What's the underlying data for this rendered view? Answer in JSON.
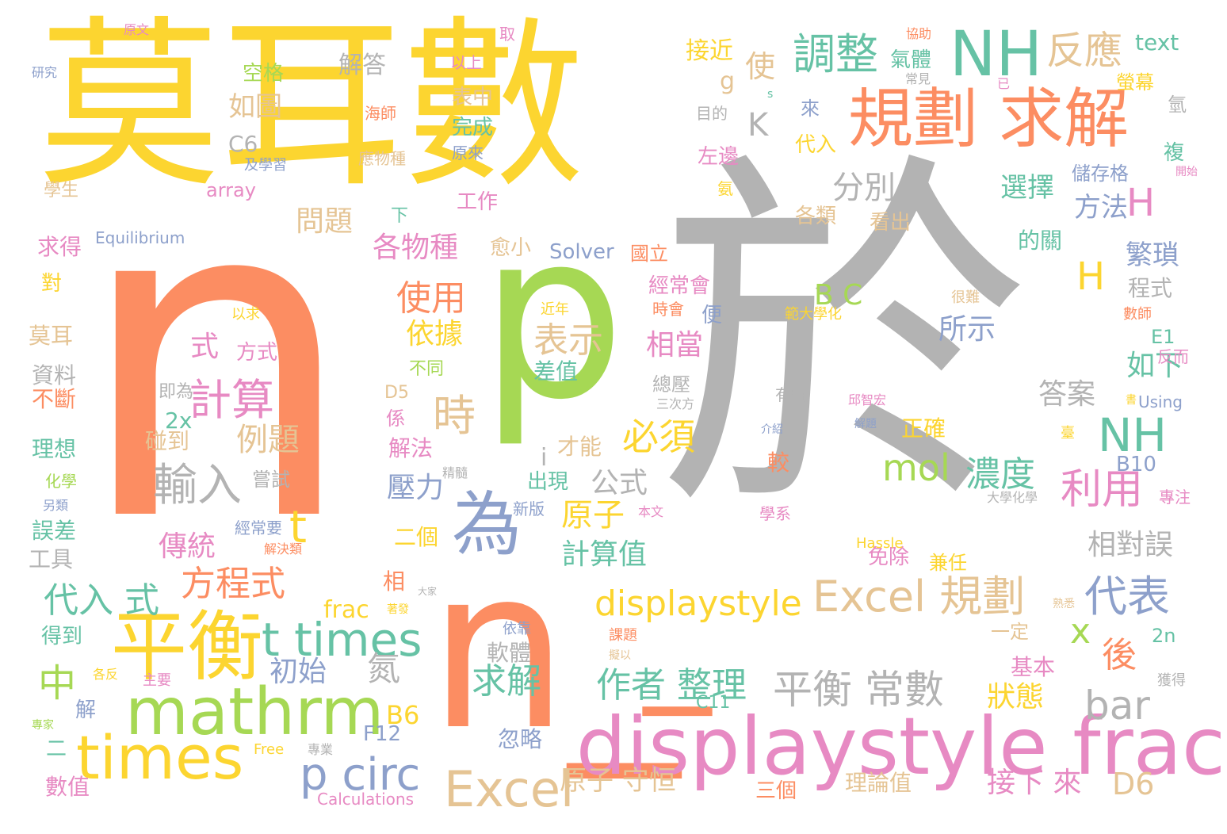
{
  "palette": {
    "yellow": "#fcd530",
    "salmon": "#fc8d62",
    "gray": "#b3b3b3",
    "green": "#a6d854",
    "teal": "#66c2a5",
    "blue": "#8da0cb",
    "pink": "#e78ac3",
    "tan": "#e5c494"
  },
  "words": [
    {
      "text": "莫耳數",
      "color": "#fcd530"
    },
    {
      "text": "n",
      "color": "#fc8d62"
    },
    {
      "text": "於",
      "color": "#b3b3b3"
    },
    {
      "text": "p",
      "color": "#a6d854"
    },
    {
      "text": "n_",
      "color": "#fc8d62"
    },
    {
      "text": "_",
      "color": "#fc8d62"
    },
    {
      "text": "displaystyle frac",
      "color": "#e78ac3"
    },
    {
      "text": "平衡",
      "color": "#fcd530"
    },
    {
      "text": "mathrm",
      "color": "#a6d854"
    },
    {
      "text": "times",
      "color": "#fcd530"
    },
    {
      "text": "規劃 求解",
      "color": "#fc8d62"
    },
    {
      "text": "NH",
      "color": "#66c2a5"
    },
    {
      "text": "為",
      "color": "#8da0cb"
    },
    {
      "text": "p circ",
      "color": "#8da0cb"
    },
    {
      "text": "Excel",
      "color": "#e5c494"
    },
    {
      "text": "t times",
      "color": "#66c2a5"
    },
    {
      "text": "displaystyle",
      "color": "#fcd530"
    },
    {
      "text": "Excel 規劃",
      "color": "#e5c494"
    },
    {
      "text": "平衡 常數",
      "color": "#b3b3b3"
    },
    {
      "text": "調整",
      "color": "#66c2a5"
    },
    {
      "text": "反應",
      "color": "#e5c494"
    },
    {
      "text": "NH",
      "color": "#66c2a5"
    },
    {
      "text": "mol",
      "color": "#a6d854"
    },
    {
      "text": "濃度",
      "color": "#66c2a5"
    },
    {
      "text": "利用",
      "color": "#e78ac3"
    },
    {
      "text": "代表",
      "color": "#8da0cb"
    },
    {
      "text": "bar",
      "color": "#b3b3b3"
    },
    {
      "text": "x",
      "color": "#a6d854"
    },
    {
      "text": "計算",
      "color": "#e78ac3"
    },
    {
      "text": "輸入",
      "color": "#b3b3b3"
    },
    {
      "text": "時",
      "color": "#e5c494"
    },
    {
      "text": "必須",
      "color": "#fcd530"
    },
    {
      "text": "作者 整理",
      "color": "#66c2a5"
    },
    {
      "text": "求解",
      "color": "#66c2a5"
    },
    {
      "text": "方程式",
      "color": "#fc8d62"
    },
    {
      "text": "代入 式",
      "color": "#66c2a5"
    },
    {
      "text": "中",
      "color": "#a6d854"
    },
    {
      "text": "傳統",
      "color": "#e78ac3"
    },
    {
      "text": "使用",
      "color": "#fc8d62"
    },
    {
      "text": "各物種",
      "color": "#e78ac3"
    },
    {
      "text": "分別",
      "color": "#b3b3b3"
    },
    {
      "text": "選擇",
      "color": "#66c2a5"
    },
    {
      "text": "方法",
      "color": "#8da0cb"
    },
    {
      "text": "H",
      "color": "#e78ac3"
    },
    {
      "text": "H",
      "color": "#fcd530"
    },
    {
      "text": "繁瑣",
      "color": "#8da0cb"
    },
    {
      "text": "所示",
      "color": "#8da0cb"
    },
    {
      "text": "如下",
      "color": "#66c2a5"
    },
    {
      "text": "答案",
      "color": "#b3b3b3"
    },
    {
      "text": "相對誤",
      "color": "#b3b3b3"
    },
    {
      "text": "後",
      "color": "#fc8d62"
    },
    {
      "text": "狀態",
      "color": "#fcd530"
    },
    {
      "text": "公式",
      "color": "#b3b3b3"
    },
    {
      "text": "原子",
      "color": "#fcd530"
    },
    {
      "text": "計算值",
      "color": "#66c2a5"
    },
    {
      "text": "原子 守恒",
      "color": "#e5c494"
    },
    {
      "text": "接下 來",
      "color": "#e78ac3"
    },
    {
      "text": "D6",
      "color": "#e5c494"
    },
    {
      "text": "表示",
      "color": "#e5c494"
    },
    {
      "text": "相當",
      "color": "#e78ac3"
    },
    {
      "text": "依據",
      "color": "#fcd530"
    },
    {
      "text": "式",
      "color": "#e78ac3"
    },
    {
      "text": "方式",
      "color": "#e78ac3"
    },
    {
      "text": "例題",
      "color": "#e5c494"
    },
    {
      "text": "壓力",
      "color": "#8da0cb"
    },
    {
      "text": "初始",
      "color": "#8da0cb"
    },
    {
      "text": "氮",
      "color": "#b3b3b3"
    },
    {
      "text": "如圖",
      "color": "#e5c494"
    },
    {
      "text": "問題",
      "color": "#e5c494"
    },
    {
      "text": "空格",
      "color": "#a6d854"
    },
    {
      "text": "解答",
      "color": "#b3b3b3"
    },
    {
      "text": "接近",
      "color": "#fcd530"
    },
    {
      "text": "氣體",
      "color": "#66c2a5"
    },
    {
      "text": "text",
      "color": "#66c2a5"
    },
    {
      "text": "螢幕",
      "color": "#fcd530"
    },
    {
      "text": "儲存格",
      "color": "#8da0cb"
    },
    {
      "text": "K",
      "color": "#b3b3b3"
    },
    {
      "text": "C6",
      "color": "#b3b3b3"
    },
    {
      "text": "g",
      "color": "#e5c494"
    },
    {
      "text": "使",
      "color": "#e5c494"
    },
    {
      "text": "Solver",
      "color": "#8da0cb"
    },
    {
      "text": "國立",
      "color": "#fc8d62"
    },
    {
      "text": "Equilibrium",
      "color": "#8da0cb"
    },
    {
      "text": "array",
      "color": "#e78ac3"
    },
    {
      "text": "B C",
      "color": "#a6d854"
    },
    {
      "text": "完成",
      "color": "#66c2a5"
    },
    {
      "text": "工作",
      "color": "#e78ac3"
    },
    {
      "text": "表中",
      "color": "#e5c494"
    },
    {
      "text": "代入",
      "color": "#fcd530"
    },
    {
      "text": "來",
      "color": "#8da0cb"
    },
    {
      "text": "左邊",
      "color": "#e78ac3"
    },
    {
      "text": "各類",
      "color": "#e5c494"
    },
    {
      "text": "看出",
      "color": "#e5c494"
    },
    {
      "text": "愈小",
      "color": "#e5c494"
    },
    {
      "text": "下",
      "color": "#66c2a5"
    },
    {
      "text": "經常會",
      "color": "#e78ac3"
    },
    {
      "text": "差值",
      "color": "#66c2a5"
    },
    {
      "text": "正確",
      "color": "#fcd530"
    },
    {
      "text": "較",
      "color": "#fc8d62"
    },
    {
      "text": "2x",
      "color": "#66c2a5"
    },
    {
      "text": "碰到",
      "color": "#e5c494"
    },
    {
      "text": "嘗試",
      "color": "#b3b3b3"
    },
    {
      "text": "不同",
      "color": "#a6d854"
    },
    {
      "text": "解法",
      "color": "#e78ac3"
    },
    {
      "text": "才能",
      "color": "#e5c494"
    },
    {
      "text": "出現",
      "color": "#66c2a5"
    },
    {
      "text": "二個",
      "color": "#fcd530"
    },
    {
      "text": "t",
      "color": "#fcd530"
    },
    {
      "text": "i",
      "color": "#b3b3b3"
    },
    {
      "text": "frac",
      "color": "#fcd530"
    },
    {
      "text": "D5",
      "color": "#e5c494"
    },
    {
      "text": "B6",
      "color": "#fcd530"
    },
    {
      "text": "F12",
      "color": "#8da0cb"
    },
    {
      "text": "忽略",
      "color": "#8da0cb"
    },
    {
      "text": "軟體",
      "color": "#b3b3b3"
    },
    {
      "text": "三個",
      "color": "#fc8d62"
    },
    {
      "text": "理論值",
      "color": "#e5c494"
    },
    {
      "text": "基本",
      "color": "#e78ac3"
    },
    {
      "text": "一定",
      "color": "#e5c494"
    },
    {
      "text": "免除",
      "color": "#e78ac3"
    },
    {
      "text": "兼任",
      "color": "#fcd530"
    },
    {
      "text": "Hassle",
      "color": "#fcd530"
    },
    {
      "text": "2n",
      "color": "#66c2a5"
    },
    {
      "text": "B10",
      "color": "#8da0cb"
    },
    {
      "text": "E1",
      "color": "#66c2a5"
    },
    {
      "text": "Using",
      "color": "#8da0cb"
    },
    {
      "text": "書",
      "color": "#fcd530"
    },
    {
      "text": "專注",
      "color": "#e78ac3"
    },
    {
      "text": "學系",
      "color": "#e78ac3"
    },
    {
      "text": "大學化學",
      "color": "#b3b3b3"
    },
    {
      "text": "莫耳",
      "color": "#e5c494"
    },
    {
      "text": "資料",
      "color": "#b3b3b3"
    },
    {
      "text": "不斷",
      "color": "#fc8d62"
    },
    {
      "text": "理想",
      "color": "#66c2a5"
    },
    {
      "text": "化學",
      "color": "#a6d854"
    },
    {
      "text": "誤差",
      "color": "#66c2a5"
    },
    {
      "text": "工具",
      "color": "#b3b3b3"
    },
    {
      "text": "得到",
      "color": "#66c2a5"
    },
    {
      "text": "數值",
      "color": "#e78ac3"
    },
    {
      "text": "求得",
      "color": "#e78ac3"
    },
    {
      "text": "對",
      "color": "#fcd530"
    },
    {
      "text": "即為",
      "color": "#b3b3b3"
    },
    {
      "text": "總壓",
      "color": "#b3b3b3"
    },
    {
      "text": "時會",
      "color": "#fc8d62"
    },
    {
      "text": "便",
      "color": "#8da0cb"
    },
    {
      "text": "範大學化",
      "color": "#fcd530"
    },
    {
      "text": "邱智宏",
      "color": "#e78ac3"
    },
    {
      "text": "有時",
      "color": "#b3b3b3"
    },
    {
      "text": "程式",
      "color": "#b3b3b3"
    },
    {
      "text": "數師",
      "color": "#fc8d62"
    },
    {
      "text": "反而",
      "color": "#e78ac3"
    },
    {
      "text": "的關",
      "color": "#66c2a5"
    },
    {
      "text": "很難",
      "color": "#e5c494"
    },
    {
      "text": "近年",
      "color": "#fcd530"
    },
    {
      "text": "以求",
      "color": "#fcd530"
    },
    {
      "text": "學生",
      "color": "#e5c494"
    },
    {
      "text": "研究",
      "color": "#8da0cb"
    },
    {
      "text": "原文",
      "color": "#e78ac3"
    },
    {
      "text": "取",
      "color": "#e78ac3"
    },
    {
      "text": "協助",
      "color": "#fc8d62"
    },
    {
      "text": "常見",
      "color": "#b3b3b3"
    },
    {
      "text": "已",
      "color": "#e78ac3"
    },
    {
      "text": "s",
      "color": "#66c2a5"
    },
    {
      "text": "目的",
      "color": "#b3b3b3"
    },
    {
      "text": "以上",
      "color": "#e78ac3"
    },
    {
      "text": "海師",
      "color": "#fc8d62"
    },
    {
      "text": "及學習",
      "color": "#8da0cb"
    },
    {
      "text": "應物種",
      "color": "#e5c494"
    },
    {
      "text": "原來",
      "color": "#8da0cb"
    },
    {
      "text": "氨",
      "color": "#fcd530"
    },
    {
      "text": "氫",
      "color": "#b3b3b3"
    },
    {
      "text": "複",
      "color": "#66c2a5"
    },
    {
      "text": "開始",
      "color": "#e78ac3"
    },
    {
      "text": "係",
      "color": "#e78ac3"
    },
    {
      "text": "經常要",
      "color": "#8da0cb"
    },
    {
      "text": "解決類",
      "color": "#fc8d62"
    },
    {
      "text": "精髓",
      "color": "#b3b3b3"
    },
    {
      "text": "三次方",
      "color": "#b3b3b3"
    },
    {
      "text": "介紹",
      "color": "#8da0cb"
    },
    {
      "text": "解題",
      "color": "#8da0cb"
    },
    {
      "text": "臺",
      "color": "#fcd530"
    },
    {
      "text": "新版",
      "color": "#8da0cb"
    },
    {
      "text": "本文",
      "color": "#e78ac3"
    },
    {
      "text": "相",
      "color": "#fc8d62"
    },
    {
      "text": "大家",
      "color": "#b3b3b3"
    },
    {
      "text": "著發",
      "color": "#fcd530"
    },
    {
      "text": "依靠",
      "color": "#8da0cb"
    },
    {
      "text": "課題",
      "color": "#fc8d62"
    },
    {
      "text": "擬以",
      "color": "#e5c494"
    },
    {
      "text": "熟悉",
      "color": "#e5c494"
    },
    {
      "text": "獲得",
      "color": "#b3b3b3"
    },
    {
      "text": "C11",
      "color": "#66c2a5"
    },
    {
      "text": "Free",
      "color": "#fcd530"
    },
    {
      "text": "專業",
      "color": "#b3b3b3"
    },
    {
      "text": "Calculations",
      "color": "#e78ac3"
    },
    {
      "text": "二",
      "color": "#66c2a5"
    },
    {
      "text": "解",
      "color": "#8da0cb"
    },
    {
      "text": "專家",
      "color": "#a6d854"
    },
    {
      "text": "各反",
      "color": "#fcd530"
    },
    {
      "text": "主要",
      "color": "#e78ac3"
    },
    {
      "text": "另類",
      "color": "#8da0cb"
    }
  ]
}
